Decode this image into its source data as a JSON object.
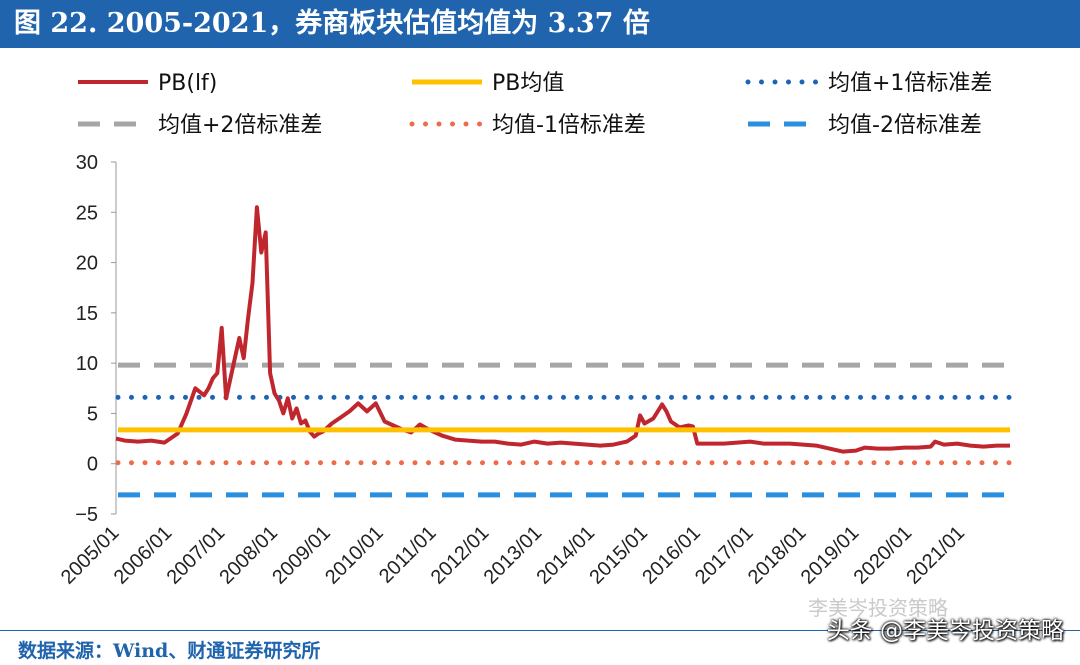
{
  "header": {
    "title": "图 22. 2005-2021，券商板块估值均值为 3.37 倍"
  },
  "footer": {
    "source": "数据来源：Wind、财通证券研究所",
    "watermark": "头条 @李美岑投资策略",
    "watermark_ghost": "李美岑投资策略"
  },
  "colors": {
    "pb": "#c0262d",
    "mean": "#ffc000",
    "plus1": "#1f63b4",
    "plus2": "#a6a6a6",
    "minus1": "#ee6a4c",
    "minus2": "#2b8fe0",
    "brand": "#1f64ad"
  },
  "chart_data": {
    "type": "line",
    "title": "",
    "xlabel": "",
    "ylabel": "",
    "ylim": [
      -5,
      30
    ],
    "yticks": [
      30,
      25,
      20,
      15,
      10,
      5,
      0,
      -5
    ],
    "xlim": [
      "2005-01",
      "2021-12"
    ],
    "xticks": [
      "2005/01",
      "2006/01",
      "2007/01",
      "2008/01",
      "2009/01",
      "2010/01",
      "2011/01",
      "2012/01",
      "2013/01",
      "2014/01",
      "2015/01",
      "2016/01",
      "2017/01",
      "2018/01",
      "2019/01",
      "2020/01",
      "2021/01"
    ],
    "legend_position": "top",
    "series": [
      {
        "name": "PB(lf)",
        "style": "solid",
        "color_key": "pb",
        "x": [
          "2005-01",
          "2005-03",
          "2005-06",
          "2005-09",
          "2005-12",
          "2006-03",
          "2006-05",
          "2006-07",
          "2006-09",
          "2006-10",
          "2006-11",
          "2006-12",
          "2007-01",
          "2007-02",
          "2007-03",
          "2007-04",
          "2007-05",
          "2007-06",
          "2007-07",
          "2007-08",
          "2007-09",
          "2007-10",
          "2007-11",
          "2007-12",
          "2008-01",
          "2008-02",
          "2008-03",
          "2008-04",
          "2008-05",
          "2008-06",
          "2008-07",
          "2008-08",
          "2008-09",
          "2008-10",
          "2008-11",
          "2008-12",
          "2009-02",
          "2009-04",
          "2009-06",
          "2009-08",
          "2009-10",
          "2009-12",
          "2010-02",
          "2010-04",
          "2010-06",
          "2010-08",
          "2010-10",
          "2010-12",
          "2011-03",
          "2011-06",
          "2011-09",
          "2011-12",
          "2012-03",
          "2012-06",
          "2012-09",
          "2012-12",
          "2013-03",
          "2013-06",
          "2013-09",
          "2013-12",
          "2014-03",
          "2014-06",
          "2014-09",
          "2014-11",
          "2014-12",
          "2015-01",
          "2015-03",
          "2015-05",
          "2015-06",
          "2015-07",
          "2015-09",
          "2015-11",
          "2015-12",
          "2016-01",
          "2016-04",
          "2016-07",
          "2016-10",
          "2017-01",
          "2017-04",
          "2017-07",
          "2017-10",
          "2018-01",
          "2018-04",
          "2018-07",
          "2018-10",
          "2019-01",
          "2019-03",
          "2019-06",
          "2019-09",
          "2019-12",
          "2020-03",
          "2020-06",
          "2020-07",
          "2020-09",
          "2020-12",
          "2021-03",
          "2021-06",
          "2021-09",
          "2021-12"
        ],
        "values": [
          2.5,
          2.3,
          2.2,
          2.3,
          2.1,
          3.0,
          5.0,
          7.5,
          6.8,
          7.5,
          8.5,
          9.0,
          13.5,
          6.5,
          8.5,
          10.5,
          12.5,
          10.5,
          14.5,
          18.0,
          25.5,
          21.0,
          23.0,
          9.0,
          7.0,
          6.3,
          5.0,
          6.5,
          4.5,
          5.5,
          4.0,
          4.3,
          3.2,
          2.7,
          3.0,
          3.2,
          4.0,
          4.6,
          5.2,
          6.0,
          5.2,
          6.0,
          4.2,
          3.8,
          3.4,
          3.1,
          3.9,
          3.4,
          2.8,
          2.4,
          2.3,
          2.2,
          2.2,
          2.0,
          1.9,
          2.2,
          2.0,
          2.1,
          2.0,
          1.9,
          1.8,
          1.9,
          2.2,
          2.8,
          4.8,
          4.0,
          4.5,
          5.9,
          5.2,
          4.2,
          3.6,
          3.8,
          3.7,
          2.0,
          2.0,
          2.0,
          2.1,
          2.2,
          2.0,
          2.0,
          2.0,
          1.9,
          1.8,
          1.5,
          1.2,
          1.3,
          1.6,
          1.5,
          1.5,
          1.6,
          1.6,
          1.7,
          2.2,
          1.9,
          2.0,
          1.8,
          1.7,
          1.8,
          1.8
        ]
      },
      {
        "name": "PB均值",
        "style": "solid",
        "color_key": "mean",
        "value": 3.37
      },
      {
        "name": "均值+1倍标准差",
        "style": "dotted",
        "color_key": "plus1",
        "value": 6.6
      },
      {
        "name": "均值+2倍标准差",
        "style": "dashed",
        "color_key": "plus2",
        "value": 9.8
      },
      {
        "name": "均值-1倍标准差",
        "style": "dotted",
        "color_key": "minus1",
        "value": 0.1
      },
      {
        "name": "均值-2倍标准差",
        "style": "dashed",
        "color_key": "minus2",
        "value": -3.1
      }
    ]
  }
}
